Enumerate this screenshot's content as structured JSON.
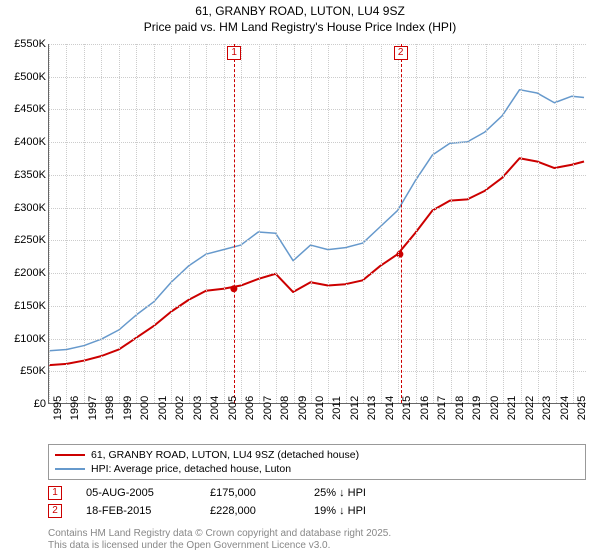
{
  "title_line1": "61, GRANBY ROAD, LUTON, LU4 9SZ",
  "title_line2": "Price paid vs. HM Land Registry's House Price Index (HPI)",
  "chart": {
    "type": "line",
    "background_color": "#ffffff",
    "grid_color": "#cccccc",
    "axis_color": "#666666",
    "x_years": [
      1995,
      1996,
      1997,
      1998,
      1999,
      2000,
      2001,
      2002,
      2003,
      2004,
      2005,
      2006,
      2007,
      2008,
      2009,
      2010,
      2011,
      2012,
      2013,
      2014,
      2015,
      2016,
      2017,
      2018,
      2019,
      2020,
      2021,
      2022,
      2023,
      2024,
      2025
    ],
    "x_min": 1995,
    "x_max": 2025.8,
    "y_ticks": [
      0,
      50000,
      100000,
      150000,
      200000,
      250000,
      300000,
      350000,
      400000,
      450000,
      500000,
      550000
    ],
    "y_tick_labels": [
      "£0",
      "£50K",
      "£100K",
      "£150K",
      "£200K",
      "£250K",
      "£300K",
      "£350K",
      "£400K",
      "£450K",
      "£500K",
      "£550K"
    ],
    "y_min": 0,
    "y_max": 550000,
    "series": [
      {
        "name": "property",
        "label": "61, GRANBY ROAD, LUTON, LU4 9SZ (detached house)",
        "color": "#cc0000",
        "width": 2,
        "points": [
          [
            1995,
            58000
          ],
          [
            1996,
            60000
          ],
          [
            1997,
            65000
          ],
          [
            1998,
            72000
          ],
          [
            1999,
            82000
          ],
          [
            2000,
            100000
          ],
          [
            2001,
            118000
          ],
          [
            2002,
            140000
          ],
          [
            2003,
            158000
          ],
          [
            2004,
            172000
          ],
          [
            2005,
            175000
          ],
          [
            2006,
            180000
          ],
          [
            2007,
            190000
          ],
          [
            2008,
            198000
          ],
          [
            2009,
            170000
          ],
          [
            2010,
            185000
          ],
          [
            2011,
            180000
          ],
          [
            2012,
            182000
          ],
          [
            2013,
            188000
          ],
          [
            2014,
            210000
          ],
          [
            2015,
            228000
          ],
          [
            2016,
            260000
          ],
          [
            2017,
            295000
          ],
          [
            2018,
            310000
          ],
          [
            2019,
            312000
          ],
          [
            2020,
            325000
          ],
          [
            2021,
            345000
          ],
          [
            2022,
            375000
          ],
          [
            2023,
            370000
          ],
          [
            2024,
            360000
          ],
          [
            2025,
            365000
          ],
          [
            2025.7,
            370000
          ]
        ]
      },
      {
        "name": "hpi",
        "label": "HPI: Average price, detached house, Luton",
        "color": "#6699cc",
        "width": 1.5,
        "points": [
          [
            1995,
            80000
          ],
          [
            1996,
            82000
          ],
          [
            1997,
            88000
          ],
          [
            1998,
            98000
          ],
          [
            1999,
            112000
          ],
          [
            2000,
            135000
          ],
          [
            2001,
            155000
          ],
          [
            2002,
            185000
          ],
          [
            2003,
            210000
          ],
          [
            2004,
            228000
          ],
          [
            2005,
            235000
          ],
          [
            2006,
            242000
          ],
          [
            2007,
            262000
          ],
          [
            2008,
            260000
          ],
          [
            2009,
            218000
          ],
          [
            2010,
            242000
          ],
          [
            2011,
            235000
          ],
          [
            2012,
            238000
          ],
          [
            2013,
            245000
          ],
          [
            2014,
            270000
          ],
          [
            2015,
            295000
          ],
          [
            2016,
            340000
          ],
          [
            2017,
            380000
          ],
          [
            2018,
            398000
          ],
          [
            2019,
            400000
          ],
          [
            2020,
            415000
          ],
          [
            2021,
            440000
          ],
          [
            2022,
            480000
          ],
          [
            2023,
            475000
          ],
          [
            2024,
            460000
          ],
          [
            2025,
            470000
          ],
          [
            2025.7,
            468000
          ]
        ]
      }
    ],
    "markers": [
      {
        "id": "1",
        "x": 2005.6,
        "color": "#cc0000"
      },
      {
        "id": "2",
        "x": 2015.13,
        "color": "#cc0000"
      }
    ],
    "sale_points": [
      {
        "x": 2005.6,
        "y": 175000,
        "color": "#cc0000"
      },
      {
        "x": 2015.13,
        "y": 228000,
        "color": "#cc0000"
      }
    ]
  },
  "legend": {
    "border_color": "#999999",
    "items": [
      {
        "color": "#cc0000",
        "label": "61, GRANBY ROAD, LUTON, LU4 9SZ (detached house)"
      },
      {
        "color": "#6699cc",
        "label": "HPI: Average price, detached house, Luton"
      }
    ]
  },
  "transactions": [
    {
      "id": "1",
      "color": "#cc0000",
      "date": "05-AUG-2005",
      "price": "£175,000",
      "diff": "25% ↓ HPI"
    },
    {
      "id": "2",
      "color": "#cc0000",
      "date": "18-FEB-2015",
      "price": "£228,000",
      "diff": "19% ↓ HPI"
    }
  ],
  "attribution": {
    "line1": "Contains HM Land Registry data © Crown copyright and database right 2025.",
    "line2": "This data is licensed under the Open Government Licence v3.0."
  }
}
